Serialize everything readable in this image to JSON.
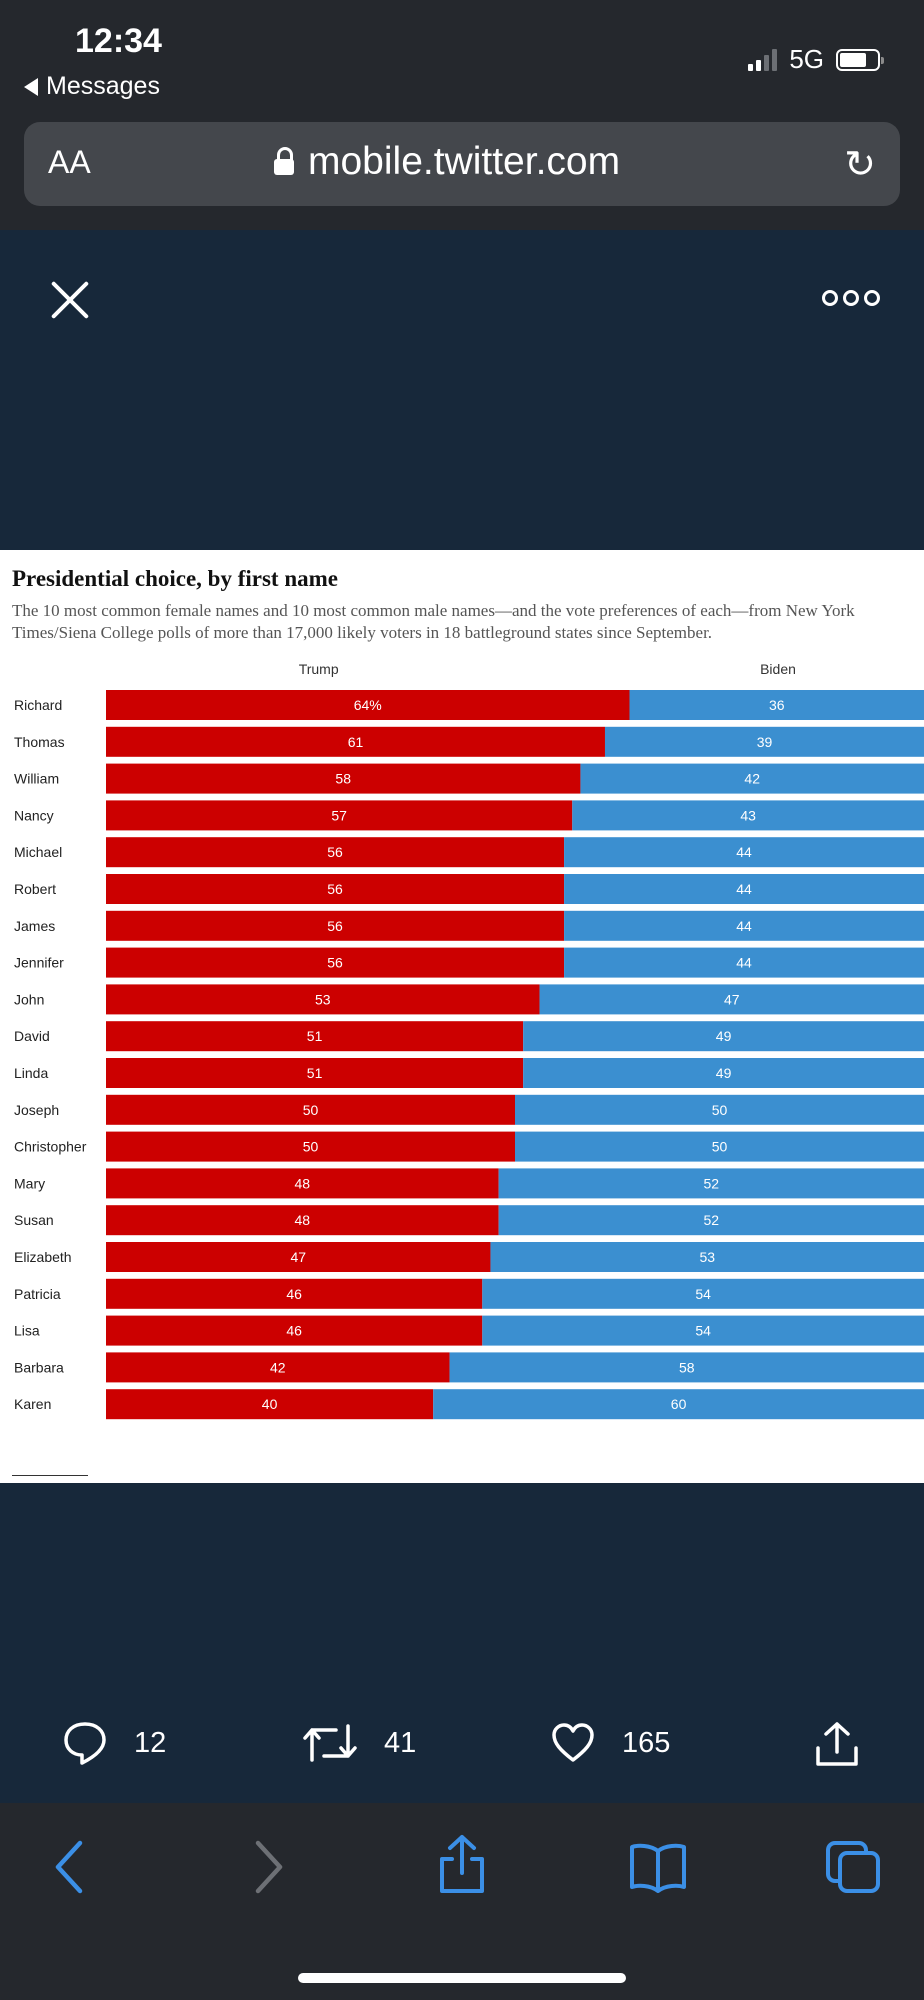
{
  "status": {
    "time": "12:34",
    "back_app": "Messages",
    "network": "5G"
  },
  "browser": {
    "text_size": "AA",
    "url": "mobile.twitter.com"
  },
  "tweet_actions": {
    "replies": "12",
    "retweets": "41",
    "likes": "165"
  },
  "colors": {
    "trump": "#cc0000",
    "biden": "#3b8fd0"
  },
  "chart_data": {
    "type": "bar",
    "stacked": true,
    "orientation": "horizontal",
    "title": "Presidential choice, by first name",
    "subtitle": "The 10 most common female names and 10 most common male names—and the vote preferences of each—from New York Times/Siena College polls of more than 17,000 likely voters in 18 battleground states since September.",
    "categories": [
      "Richard",
      "Thomas",
      "William",
      "Nancy",
      "Michael",
      "Robert",
      "James",
      "Jennifer",
      "John",
      "David",
      "Linda",
      "Joseph",
      "Christopher",
      "Mary",
      "Susan",
      "Elizabeth",
      "Patricia",
      "Lisa",
      "Barbara",
      "Karen"
    ],
    "series": [
      {
        "name": "Trump",
        "values": [
          64,
          61,
          58,
          57,
          56,
          56,
          56,
          56,
          53,
          51,
          51,
          50,
          50,
          48,
          48,
          47,
          46,
          46,
          42,
          40
        ],
        "labels": [
          "64%",
          "61",
          "58",
          "57",
          "56",
          "56",
          "56",
          "56",
          "53",
          "51",
          "51",
          "50",
          "50",
          "48",
          "48",
          "47",
          "46",
          "46",
          "42",
          "40"
        ]
      },
      {
        "name": "Biden",
        "values": [
          36,
          39,
          42,
          43,
          44,
          44,
          44,
          44,
          47,
          49,
          49,
          50,
          50,
          52,
          52,
          53,
          54,
          54,
          58,
          60
        ],
        "labels": [
          "36",
          "39",
          "42",
          "43",
          "44",
          "44",
          "44",
          "44",
          "47",
          "49",
          "49",
          "50",
          "50",
          "52",
          "52",
          "53",
          "54",
          "54",
          "58",
          "60"
        ]
      }
    ],
    "xlim": [
      0,
      100
    ]
  }
}
